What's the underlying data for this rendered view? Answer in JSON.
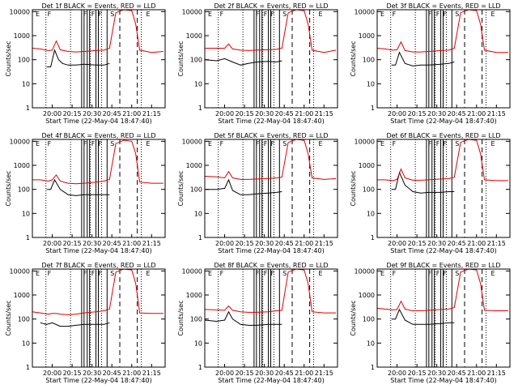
{
  "common": {
    "ylabel": "Counts/sec",
    "xlabel": "Start Time (22-May-04 18:47:40)",
    "x_ticks": [
      "20:00",
      "20:15",
      "20:30",
      "20:45",
      "21:00",
      "21:15"
    ],
    "y_ticks": [
      "1",
      "10",
      "100",
      "1000",
      "10000"
    ],
    "flag_labels": [
      "E",
      "F",
      "F",
      "F",
      "F",
      "S",
      "E"
    ],
    "colors": {
      "events": "#000000",
      "lld": "#dd0000"
    }
  },
  "chart_data": [
    {
      "type": "line",
      "title": "Det 1f BLACK = Events, RED = LLD",
      "xlim": [
        19.75,
        21.42
      ],
      "ylim": [
        1,
        12000
      ],
      "yscale": "log",
      "series": [
        {
          "name": "Events",
          "color": "#000000",
          "x": [
            19.93,
            19.98,
            20.03,
            20.08,
            20.13,
            20.2,
            20.3,
            20.4,
            20.55,
            20.65,
            20.72
          ],
          "values": [
            50,
            50,
            250,
            100,
            70,
            60,
            60,
            65,
            60,
            60,
            70
          ]
        },
        {
          "name": "LLD",
          "color": "#dd0000",
          "x": [
            19.75,
            19.85,
            19.95,
            20.0,
            20.05,
            20.1,
            20.2,
            20.3,
            20.4,
            20.55,
            20.65,
            20.72,
            20.8,
            20.9,
            21.0,
            21.05,
            21.1,
            21.25,
            21.4
          ],
          "values": [
            300,
            280,
            240,
            250,
            600,
            260,
            220,
            210,
            220,
            240,
            250,
            300,
            9000,
            12000,
            11000,
            3000,
            250,
            200,
            220
          ]
        }
      ]
    },
    {
      "type": "line",
      "title": "Det 2f BLACK = Events, RED = LLD",
      "xlim": [
        19.75,
        21.42
      ],
      "ylim": [
        1,
        12000
      ],
      "yscale": "log",
      "series": [
        {
          "name": "Events",
          "color": "#000000",
          "x": [
            19.75,
            19.9,
            20.0,
            20.1,
            20.2,
            20.3,
            20.4,
            20.55,
            20.65,
            20.72
          ],
          "values": [
            100,
            90,
            110,
            80,
            60,
            70,
            80,
            85,
            80,
            90
          ]
        },
        {
          "name": "LLD",
          "color": "#dd0000",
          "x": [
            19.75,
            19.9,
            20.0,
            20.05,
            20.1,
            20.2,
            20.3,
            20.4,
            20.55,
            20.65,
            20.72,
            20.8,
            20.9,
            21.0,
            21.05,
            21.1,
            21.25,
            21.4
          ],
          "values": [
            300,
            300,
            300,
            450,
            280,
            250,
            240,
            250,
            260,
            270,
            300,
            9000,
            12000,
            11000,
            3000,
            250,
            200,
            250
          ]
        }
      ]
    },
    {
      "type": "line",
      "title": "Det 3f BLACK = Events, RED = LLD",
      "xlim": [
        19.75,
        21.42
      ],
      "ylim": [
        1,
        12000
      ],
      "yscale": "log",
      "series": [
        {
          "name": "Events",
          "color": "#000000",
          "x": [
            19.93,
            19.98,
            20.03,
            20.1,
            20.2,
            20.3,
            20.4,
            20.55,
            20.65,
            20.72
          ],
          "values": [
            60,
            60,
            200,
            70,
            55,
            60,
            60,
            65,
            70,
            80
          ]
        },
        {
          "name": "LLD",
          "color": "#dd0000",
          "x": [
            19.75,
            19.85,
            19.95,
            20.0,
            20.05,
            20.1,
            20.2,
            20.3,
            20.4,
            20.55,
            20.65,
            20.72,
            20.8,
            20.9,
            21.0,
            21.05,
            21.1,
            21.25,
            21.4
          ],
          "values": [
            300,
            280,
            250,
            260,
            550,
            240,
            210,
            210,
            220,
            240,
            250,
            300,
            9000,
            12000,
            11000,
            3000,
            250,
            200,
            200
          ]
        }
      ]
    },
    {
      "type": "line",
      "title": "Det 4f BLACK = Events, RED = LLD",
      "xlim": [
        19.75,
        21.42
      ],
      "ylim": [
        1,
        12000
      ],
      "yscale": "log",
      "series": [
        {
          "name": "Events",
          "color": "#000000",
          "x": [
            19.93,
            19.98,
            20.03,
            20.1,
            20.2,
            20.3,
            20.4,
            20.55,
            20.65,
            20.72
          ],
          "values": [
            100,
            100,
            250,
            100,
            60,
            55,
            60,
            60,
            60,
            60
          ]
        },
        {
          "name": "LLD",
          "color": "#dd0000",
          "x": [
            19.75,
            19.85,
            19.95,
            20.0,
            20.05,
            20.1,
            20.2,
            20.3,
            20.4,
            20.55,
            20.65,
            20.72,
            20.8,
            20.9,
            21.0,
            21.05,
            21.1,
            21.25,
            21.4
          ],
          "values": [
            250,
            250,
            220,
            250,
            400,
            220,
            180,
            170,
            180,
            200,
            220,
            260,
            8000,
            11000,
            10000,
            3000,
            200,
            180,
            180
          ]
        }
      ]
    },
    {
      "type": "line",
      "title": "Det 5f BLACK = Events, RED = LLD",
      "xlim": [
        19.75,
        21.42
      ],
      "ylim": [
        1,
        12000
      ],
      "yscale": "log",
      "series": [
        {
          "name": "Events",
          "color": "#000000",
          "x": [
            19.75,
            19.9,
            20.0,
            20.05,
            20.1,
            20.2,
            20.3,
            20.4,
            20.55,
            20.65,
            20.72
          ],
          "values": [
            100,
            100,
            110,
            250,
            90,
            60,
            60,
            65,
            70,
            75,
            80
          ]
        },
        {
          "name": "LLD",
          "color": "#dd0000",
          "x": [
            19.75,
            19.9,
            20.0,
            20.05,
            20.1,
            20.2,
            20.3,
            20.4,
            20.55,
            20.65,
            20.72,
            20.8,
            20.9,
            21.0,
            21.05,
            21.1,
            21.25,
            21.4
          ],
          "values": [
            350,
            330,
            300,
            550,
            300,
            260,
            260,
            270,
            280,
            300,
            320,
            9000,
            12000,
            11000,
            3000,
            300,
            260,
            280
          ]
        }
      ]
    },
    {
      "type": "line",
      "title": "Det 6f BLACK = Events, RED = LLD",
      "xlim": [
        19.75,
        21.42
      ],
      "ylim": [
        1,
        12000
      ],
      "yscale": "log",
      "series": [
        {
          "name": "Events",
          "color": "#000000",
          "x": [
            19.93,
            19.98,
            20.03,
            20.1,
            20.2,
            20.3,
            20.4,
            20.55,
            20.65,
            20.72
          ],
          "values": [
            100,
            100,
            500,
            150,
            80,
            70,
            75,
            75,
            80,
            80
          ]
        },
        {
          "name": "LLD",
          "color": "#dd0000",
          "x": [
            19.75,
            19.85,
            19.95,
            20.0,
            20.05,
            20.1,
            20.2,
            20.3,
            20.4,
            20.55,
            20.65,
            20.72,
            20.8,
            20.9,
            21.0,
            21.05,
            21.1,
            21.25,
            21.4
          ],
          "values": [
            250,
            250,
            230,
            260,
            700,
            300,
            240,
            240,
            250,
            270,
            280,
            320,
            9000,
            12000,
            11000,
            3000,
            250,
            230,
            230
          ]
        }
      ]
    },
    {
      "type": "line",
      "title": "Det 7f BLACK = Events, RED = LLD",
      "xlim": [
        19.75,
        21.42
      ],
      "ylim": [
        1,
        12000
      ],
      "yscale": "log",
      "series": [
        {
          "name": "Events",
          "color": "#000000",
          "x": [
            19.85,
            19.93,
            20.0,
            20.1,
            20.2,
            20.3,
            20.4,
            20.55,
            20.65,
            20.72
          ],
          "values": [
            70,
            60,
            70,
            50,
            50,
            55,
            60,
            60,
            60,
            70
          ]
        },
        {
          "name": "LLD",
          "color": "#dd0000",
          "x": [
            19.75,
            19.85,
            19.95,
            20.0,
            20.05,
            20.1,
            20.2,
            20.3,
            20.4,
            20.55,
            20.65,
            20.72,
            20.8,
            20.9,
            21.0,
            21.05,
            21.1,
            21.25,
            21.4
          ],
          "values": [
            200,
            180,
            160,
            170,
            170,
            160,
            150,
            160,
            180,
            200,
            220,
            260,
            9000,
            12000,
            11000,
            3000,
            180,
            170,
            170
          ]
        }
      ]
    },
    {
      "type": "line",
      "title": "Det 8f BLACK = Events, RED = LLD",
      "xlim": [
        19.75,
        21.42
      ],
      "ylim": [
        1,
        12000
      ],
      "yscale": "log",
      "series": [
        {
          "name": "Events",
          "color": "#000000",
          "x": [
            19.75,
            19.9,
            20.0,
            20.05,
            20.1,
            20.2,
            20.3,
            20.4,
            20.55,
            20.65,
            20.72
          ],
          "values": [
            90,
            80,
            90,
            200,
            100,
            60,
            55,
            55,
            60,
            60,
            60
          ]
        },
        {
          "name": "LLD",
          "color": "#dd0000",
          "x": [
            19.75,
            19.9,
            20.0,
            20.05,
            20.1,
            20.2,
            20.3,
            20.4,
            20.55,
            20.65,
            20.72,
            20.8,
            20.9,
            21.0,
            21.05,
            21.1,
            21.25,
            21.4
          ],
          "values": [
            250,
            240,
            230,
            350,
            230,
            200,
            190,
            190,
            200,
            220,
            230,
            9000,
            12000,
            11000,
            3000,
            200,
            180,
            180
          ]
        }
      ]
    },
    {
      "type": "line",
      "title": "Det 9f BLACK = Events, RED = LLD",
      "xlim": [
        19.75,
        21.42
      ],
      "ylim": [
        1,
        12000
      ],
      "yscale": "log",
      "series": [
        {
          "name": "Events",
          "color": "#000000",
          "x": [
            19.93,
            19.98,
            20.03,
            20.1,
            20.2,
            20.3,
            20.4,
            20.55,
            20.65,
            20.72
          ],
          "values": [
            100,
            100,
            250,
            90,
            60,
            60,
            60,
            65,
            70,
            70
          ]
        },
        {
          "name": "LLD",
          "color": "#dd0000",
          "x": [
            19.75,
            19.85,
            19.95,
            20.0,
            20.05,
            20.1,
            20.2,
            20.3,
            20.4,
            20.55,
            20.65,
            20.72,
            20.8,
            20.9,
            21.0,
            21.05,
            21.1,
            21.25,
            21.4
          ],
          "values": [
            280,
            260,
            240,
            250,
            550,
            260,
            220,
            220,
            230,
            250,
            260,
            300,
            9000,
            12000,
            11000,
            3000,
            230,
            220,
            220
          ]
        }
      ]
    }
  ]
}
